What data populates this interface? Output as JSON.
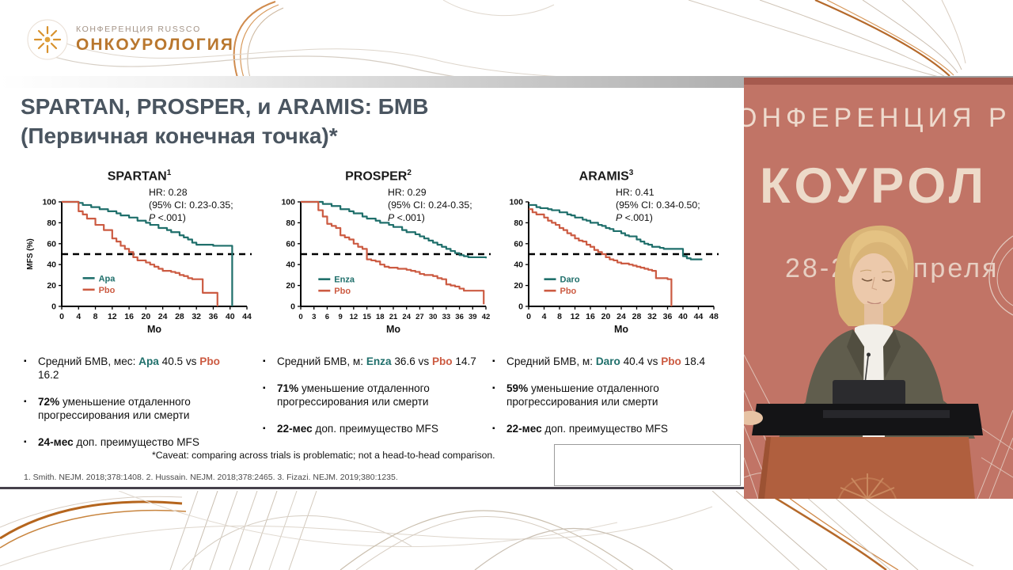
{
  "branding": {
    "conference_label": "КОНФЕРЕНЦИЯ RUSSCO",
    "brand_label": "ОНКОУРОЛОГИЯ"
  },
  "slide": {
    "title_line1": "SPARTAN, PROSPER, и ARAMIS: БМВ",
    "title_line2": "(Первичная конечная точка)*",
    "caveat": "*Caveat: comparing across trials is problematic; not a head-to-head comparison.",
    "references": "1. Smith. NEJM. 2018;378:1408. 2. Hussain. NEJM. 2018;378:2465. 3. Fizazi. NEJM. 2019;380:1235."
  },
  "colors": {
    "treatment": "#1f6f6b",
    "placebo": "#cc5b42",
    "title": "#4a5560",
    "banner": "#c17466",
    "podium": "#b05f3e"
  },
  "chart_data": [
    {
      "type": "line",
      "title": "SPARTAN",
      "sup": "1",
      "hr": "HR: 0.28",
      "ci": "(95% CI: 0.23-0.35;",
      "p_italic": "P",
      "p_rest": " <.001)",
      "xlabel": "Mo",
      "ylabel": "MFS (%)",
      "xlim": [
        0,
        44
      ],
      "xticks": [
        0,
        4,
        8,
        12,
        16,
        20,
        24,
        28,
        32,
        36,
        40,
        44
      ],
      "ylim": [
        0,
        100
      ],
      "yticks": [
        0,
        20,
        40,
        60,
        80,
        100
      ],
      "dashed_y": 50,
      "legend_pos": [
        5,
        27
      ],
      "series": [
        {
          "name": "Apa",
          "color_key": "treatment",
          "median_months": 40.5,
          "points": [
            [
              0,
              100
            ],
            [
              4,
              99
            ],
            [
              5,
              97
            ],
            [
              7,
              95
            ],
            [
              9,
              93
            ],
            [
              11,
              91
            ],
            [
              13,
              89
            ],
            [
              14,
              87
            ],
            [
              16,
              85
            ],
            [
              18,
              82
            ],
            [
              20,
              80
            ],
            [
              21,
              78
            ],
            [
              23,
              75
            ],
            [
              25,
              73
            ],
            [
              26,
              71
            ],
            [
              28,
              68
            ],
            [
              29,
              66
            ],
            [
              30,
              64
            ],
            [
              31,
              61
            ],
            [
              32,
              59
            ],
            [
              36,
              58
            ],
            [
              40.5,
              58
            ],
            [
              40.5,
              0
            ]
          ]
        },
        {
          "name": "Pbo",
          "color_key": "placebo",
          "median_months": 16.2,
          "points": [
            [
              0,
              100
            ],
            [
              3,
              100
            ],
            [
              4,
              91
            ],
            [
              5,
              88
            ],
            [
              6,
              84
            ],
            [
              8,
              78
            ],
            [
              10,
              73
            ],
            [
              12,
              65
            ],
            [
              13,
              62
            ],
            [
              14,
              58
            ],
            [
              15,
              55
            ],
            [
              16,
              52
            ],
            [
              17,
              47
            ],
            [
              18,
              44
            ],
            [
              20,
              42
            ],
            [
              21,
              40
            ],
            [
              22,
              38
            ],
            [
              23,
              36
            ],
            [
              24,
              34
            ],
            [
              26,
              33
            ],
            [
              27,
              32
            ],
            [
              28,
              30
            ],
            [
              29,
              29
            ],
            [
              30,
              27
            ],
            [
              31,
              26
            ],
            [
              33,
              26
            ],
            [
              33.5,
              13
            ],
            [
              37,
              13
            ],
            [
              37,
              0
            ]
          ]
        }
      ]
    },
    {
      "type": "line",
      "title": "PROSPER",
      "sup": "2",
      "hr": "HR: 0.29",
      "ci": "(95% CI: 0.24-0.35;",
      "p_italic": "P",
      "p_rest": " <.001)",
      "xlabel": "Mo",
      "ylabel": "",
      "xlim": [
        0,
        42
      ],
      "xticks": [
        0,
        3,
        6,
        9,
        12,
        15,
        18,
        21,
        24,
        27,
        30,
        33,
        36,
        39,
        42
      ],
      "ylim": [
        0,
        100
      ],
      "yticks": [
        0,
        20,
        40,
        60,
        80,
        100
      ],
      "dashed_y": 50,
      "legend_pos": [
        4,
        26
      ],
      "series": [
        {
          "name": "Enza",
          "color_key": "treatment",
          "median_months": 36.6,
          "points": [
            [
              0,
              100
            ],
            [
              4,
              100
            ],
            [
              5,
              98
            ],
            [
              7,
              96
            ],
            [
              9,
              93
            ],
            [
              11,
              91
            ],
            [
              12,
              89
            ],
            [
              14,
              86
            ],
            [
              15,
              84
            ],
            [
              17,
              82
            ],
            [
              18,
              80
            ],
            [
              20,
              78
            ],
            [
              21,
              76
            ],
            [
              23,
              73
            ],
            [
              24,
              71
            ],
            [
              26,
              69
            ],
            [
              27,
              67
            ],
            [
              28,
              65
            ],
            [
              29,
              63
            ],
            [
              30,
              61
            ],
            [
              31,
              59
            ],
            [
              32,
              57
            ],
            [
              33,
              55
            ],
            [
              34,
              53
            ],
            [
              35,
              51
            ],
            [
              36,
              49
            ],
            [
              37,
              48
            ],
            [
              38,
              47
            ],
            [
              42,
              46
            ]
          ]
        },
        {
          "name": "Pbo",
          "color_key": "placebo",
          "median_months": 14.7,
          "points": [
            [
              0,
              100
            ],
            [
              3,
              100
            ],
            [
              4,
              92
            ],
            [
              5,
              86
            ],
            [
              6,
              79
            ],
            [
              7,
              77
            ],
            [
              8,
              75
            ],
            [
              9,
              68
            ],
            [
              10,
              66
            ],
            [
              11,
              64
            ],
            [
              12,
              60
            ],
            [
              13,
              57
            ],
            [
              14,
              55
            ],
            [
              15,
              45
            ],
            [
              16,
              44
            ],
            [
              17,
              43
            ],
            [
              18,
              40
            ],
            [
              19,
              38
            ],
            [
              20,
              37
            ],
            [
              22,
              36
            ],
            [
              24,
              35
            ],
            [
              25,
              34
            ],
            [
              26,
              33
            ],
            [
              27,
              31
            ],
            [
              28,
              30
            ],
            [
              30,
              29
            ],
            [
              31,
              27
            ],
            [
              32,
              26
            ],
            [
              33,
              21
            ],
            [
              34,
              20
            ],
            [
              35,
              19
            ],
            [
              36,
              17
            ],
            [
              37,
              15
            ],
            [
              41.5,
              15
            ],
            [
              41.5,
              2
            ]
          ]
        }
      ]
    },
    {
      "type": "line",
      "title": "ARAMIS",
      "sup": "3",
      "hr": "HR: 0.41",
      "ci": "(95% CI: 0.34-0.50;",
      "p_italic": "P",
      "p_rest": " <.001)",
      "xlabel": "Mo",
      "ylabel": "",
      "xlim": [
        0,
        48
      ],
      "xticks": [
        0,
        4,
        8,
        12,
        16,
        20,
        24,
        28,
        32,
        36,
        40,
        44,
        48
      ],
      "ylim": [
        0,
        100
      ],
      "yticks": [
        0,
        20,
        40,
        60,
        80,
        100
      ],
      "dashed_y": 50,
      "legend_pos": [
        4,
        26
      ],
      "series": [
        {
          "name": "Daro",
          "color_key": "treatment",
          "median_months": 40.4,
          "points": [
            [
              0,
              97
            ],
            [
              2,
              95
            ],
            [
              3,
              94
            ],
            [
              5,
              93
            ],
            [
              6,
              92
            ],
            [
              8,
              90
            ],
            [
              10,
              88
            ],
            [
              11,
              87
            ],
            [
              12,
              85
            ],
            [
              14,
              83
            ],
            [
              15,
              82
            ],
            [
              16,
              80
            ],
            [
              18,
              78
            ],
            [
              19,
              77
            ],
            [
              20,
              75
            ],
            [
              21,
              74
            ],
            [
              22,
              72
            ],
            [
              24,
              70
            ],
            [
              25,
              68
            ],
            [
              26,
              67
            ],
            [
              28,
              64
            ],
            [
              29,
              62
            ],
            [
              30,
              60
            ],
            [
              31,
              59
            ],
            [
              32,
              57
            ],
            [
              34,
              56
            ],
            [
              35,
              55
            ],
            [
              39,
              55
            ],
            [
              40,
              48
            ],
            [
              41,
              46
            ],
            [
              42,
              45
            ],
            [
              45,
              45
            ]
          ]
        },
        {
          "name": "Pbo",
          "color_key": "placebo",
          "median_months": 18.4,
          "points": [
            [
              0,
              93
            ],
            [
              1,
              90
            ],
            [
              2,
              88
            ],
            [
              4,
              85
            ],
            [
              5,
              82
            ],
            [
              6,
              80
            ],
            [
              7,
              78
            ],
            [
              8,
              75
            ],
            [
              9,
              73
            ],
            [
              10,
              70
            ],
            [
              11,
              68
            ],
            [
              12,
              65
            ],
            [
              13,
              63
            ],
            [
              14,
              62
            ],
            [
              15,
              59
            ],
            [
              16,
              57
            ],
            [
              17,
              54
            ],
            [
              18,
              52
            ],
            [
              19,
              50
            ],
            [
              20,
              47
            ],
            [
              21,
              45
            ],
            [
              22,
              44
            ],
            [
              23,
              42
            ],
            [
              24,
              41
            ],
            [
              26,
              40
            ],
            [
              27,
              39
            ],
            [
              28,
              38
            ],
            [
              29,
              37
            ],
            [
              30,
              36
            ],
            [
              31,
              35
            ],
            [
              32,
              34
            ],
            [
              33,
              27
            ],
            [
              36,
              26
            ],
            [
              37,
              26
            ],
            [
              37,
              0
            ]
          ]
        }
      ]
    }
  ],
  "bullets": {
    "spartan": [
      [
        {
          "t": "Средний БМВ, мес: "
        },
        {
          "t": "Apa",
          "c": "treatment",
          "b": 1
        },
        {
          "t": " 40.5 vs "
        },
        {
          "t": "Pbo",
          "c": "placebo",
          "b": 1
        },
        {
          "t": " 16.2"
        }
      ],
      [
        {
          "t": "72%",
          "b": 1
        },
        {
          "t": " уменьшение отдаленного прогрессирования или смерти"
        }
      ],
      [
        {
          "t": "24-мес",
          "b": 1
        },
        {
          "t": " доп. преимущество MFS"
        }
      ]
    ],
    "prosper": [
      [
        {
          "t": "Средний БМВ, м: "
        },
        {
          "t": "Enza",
          "c": "treatment",
          "b": 1
        },
        {
          "t": " 36.6 vs "
        },
        {
          "t": "Pbo",
          "c": "placebo",
          "b": 1
        },
        {
          "t": " 14.7"
        }
      ],
      [
        {
          "t": "71%",
          "b": 1
        },
        {
          "t": " уменьшение отдаленного прогрессирования или смерти"
        }
      ],
      [
        {
          "t": "22-мес",
          "b": 1
        },
        {
          "t": " доп. преимущество MFS"
        }
      ]
    ],
    "aramis": [
      [
        {
          "t": "Средний БМВ, м: "
        },
        {
          "t": "Daro",
          "c": "treatment",
          "b": 1
        },
        {
          "t": " 40.4 vs "
        },
        {
          "t": "Pbo",
          "c": "placebo",
          "b": 1
        },
        {
          "t": " 18.4"
        }
      ],
      [
        {
          "t": "59%",
          "b": 1
        },
        {
          "t": " уменьшение отдаленного прогрессирования или смерти"
        }
      ],
      [
        {
          "t": "22-мес",
          "b": 1
        },
        {
          "t": " доп. преимущество MFS"
        }
      ]
    ]
  },
  "video": {
    "banner_top_fragment": "ОНФЕРЕНЦИЯ Р",
    "banner_main_fragment": "КОУРОЛ",
    "banner_date_left": "28-2",
    "banner_date_right": "преля"
  }
}
